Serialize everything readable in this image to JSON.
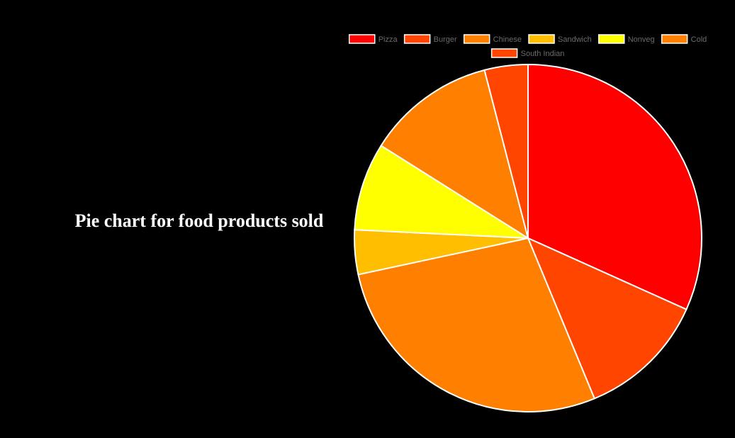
{
  "page": {
    "title": "Pie chart for food products sold"
  },
  "chart_data": {
    "type": "pie",
    "title": "",
    "legend_position": "top",
    "slice_border_color": "#ffffff",
    "categories": [
      "Pizza",
      "Burger",
      "Chinese",
      "Sandwich",
      "Nonveg",
      "Cold",
      "South Indian"
    ],
    "values": [
      33,
      12.5,
      29,
      4.3,
      8.5,
      12.5,
      4.2
    ],
    "colors": [
      "#ff0000",
      "#ff4500",
      "#ff7f00",
      "#ffbf00",
      "#ffff00",
      "#ff7f00",
      "#ff4500"
    ]
  }
}
